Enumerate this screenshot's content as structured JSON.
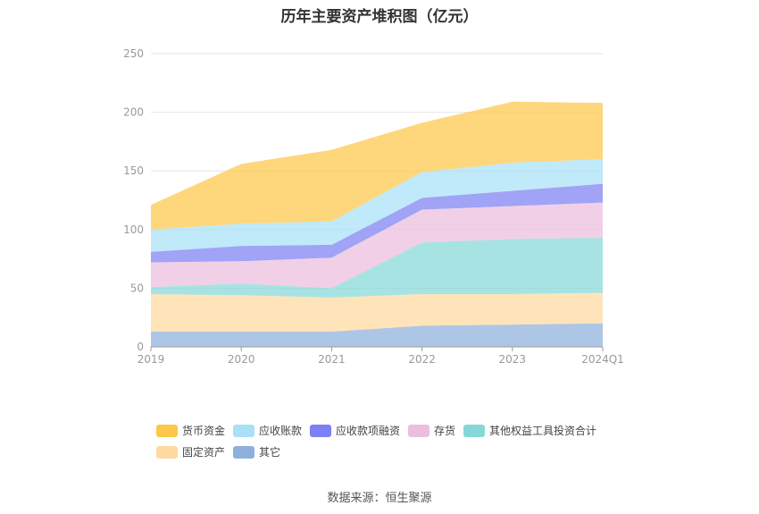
{
  "chart_data": {
    "type": "area",
    "stacked": true,
    "title": "历年主要资产堆积图（亿元）",
    "xlabel": "",
    "ylabel": "",
    "x": [
      "2019",
      "2020",
      "2021",
      "2022",
      "2023",
      "2024Q1"
    ],
    "ylim": [
      0,
      250
    ],
    "yticks": [
      "0",
      "50",
      "100",
      "150",
      "200",
      "250"
    ],
    "grid": true,
    "legend_position": "bottom",
    "series": [
      {
        "name": "其它",
        "color": "#8fb0dd",
        "values": [
          13,
          13,
          13,
          18,
          19,
          20
        ]
      },
      {
        "name": "固定资产",
        "color": "#ffd9a0",
        "values": [
          32,
          31,
          29,
          27,
          26,
          26
        ]
      },
      {
        "name": "其他权益工具投资合计",
        "color": "#86d8d8",
        "values": [
          6,
          10,
          8,
          44,
          47,
          47
        ]
      },
      {
        "name": "存货",
        "color": "#ebbede",
        "values": [
          21,
          19,
          26,
          28,
          28,
          30
        ]
      },
      {
        "name": "应收款项融资",
        "color": "#7b80f2",
        "values": [
          9,
          13,
          11,
          10,
          13,
          16
        ]
      },
      {
        "name": "应收账款",
        "color": "#a8e0f8",
        "values": [
          19,
          19,
          20,
          22,
          24,
          21
        ]
      },
      {
        "name": "货币资金",
        "color": "#fdc84a",
        "values": [
          21,
          51,
          61,
          42,
          52,
          48
        ]
      }
    ],
    "legend_order": [
      "货币资金",
      "应收账款",
      "应收款项融资",
      "存货",
      "其他权益工具投资合计",
      "固定资产",
      "其它"
    ]
  },
  "source": "数据来源：恒生聚源"
}
